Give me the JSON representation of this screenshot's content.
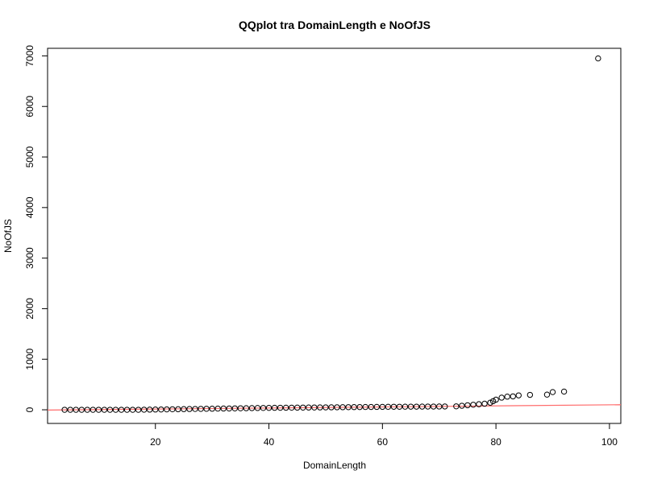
{
  "chart_data": {
    "type": "scatter",
    "title": "QQplot tra DomainLength e NoOfJS",
    "xlabel": "DomainLength",
    "ylabel": "NoOfJS",
    "xlim": [
      1,
      102
    ],
    "ylim": [
      -270,
      7150
    ],
    "xticks": [
      20,
      40,
      60,
      80,
      100
    ],
    "yticks": [
      0,
      1000,
      2000,
      3000,
      4000,
      5000,
      6000,
      7000
    ],
    "grid": false,
    "line_color": "#ff6b6b",
    "point_color": "#000000",
    "reference_line": {
      "x": [
        1,
        102
      ],
      "y": [
        -5,
        100
      ]
    },
    "points": [
      [
        4,
        0
      ],
      [
        5,
        0
      ],
      [
        6,
        0
      ],
      [
        7,
        0
      ],
      [
        8,
        0
      ],
      [
        9,
        0
      ],
      [
        10,
        0
      ],
      [
        11,
        0
      ],
      [
        12,
        0
      ],
      [
        13,
        0
      ],
      [
        14,
        0
      ],
      [
        15,
        0
      ],
      [
        16,
        0
      ],
      [
        17,
        0
      ],
      [
        18,
        2
      ],
      [
        19,
        3
      ],
      [
        20,
        5
      ],
      [
        21,
        6
      ],
      [
        22,
        8
      ],
      [
        23,
        10
      ],
      [
        24,
        11
      ],
      [
        25,
        13
      ],
      [
        26,
        15
      ],
      [
        27,
        16
      ],
      [
        28,
        18
      ],
      [
        29,
        20
      ],
      [
        30,
        21
      ],
      [
        31,
        23
      ],
      [
        32,
        25
      ],
      [
        33,
        26
      ],
      [
        34,
        28
      ],
      [
        35,
        30
      ],
      [
        36,
        31
      ],
      [
        37,
        33
      ],
      [
        38,
        35
      ],
      [
        39,
        36
      ],
      [
        40,
        38
      ],
      [
        41,
        39
      ],
      [
        42,
        40
      ],
      [
        43,
        41
      ],
      [
        44,
        42
      ],
      [
        45,
        43
      ],
      [
        46,
        44
      ],
      [
        47,
        45
      ],
      [
        48,
        46
      ],
      [
        49,
        47
      ],
      [
        50,
        48
      ],
      [
        51,
        49
      ],
      [
        52,
        50
      ],
      [
        53,
        51
      ],
      [
        54,
        52
      ],
      [
        55,
        53
      ],
      [
        56,
        54
      ],
      [
        57,
        55
      ],
      [
        58,
        56
      ],
      [
        59,
        57
      ],
      [
        60,
        58
      ],
      [
        61,
        59
      ],
      [
        62,
        60
      ],
      [
        63,
        60
      ],
      [
        64,
        61
      ],
      [
        65,
        62
      ],
      [
        66,
        62
      ],
      [
        67,
        63
      ],
      [
        68,
        64
      ],
      [
        69,
        64
      ],
      [
        70,
        65
      ],
      [
        71,
        66
      ],
      [
        73,
        68
      ],
      [
        74,
        80
      ],
      [
        75,
        90
      ],
      [
        76,
        100
      ],
      [
        77,
        110
      ],
      [
        78,
        120
      ],
      [
        79,
        140
      ],
      [
        79.5,
        170
      ],
      [
        80,
        200
      ],
      [
        81,
        240
      ],
      [
        82,
        260
      ],
      [
        83,
        265
      ],
      [
        84,
        285
      ],
      [
        86,
        295
      ],
      [
        89,
        300
      ],
      [
        90,
        350
      ],
      [
        92,
        360
      ],
      [
        98,
        6950
      ]
    ]
  }
}
